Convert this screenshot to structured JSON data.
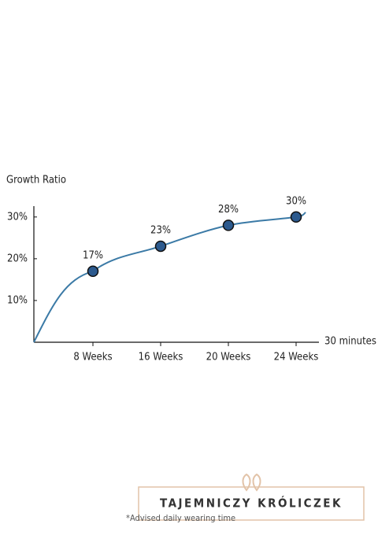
{
  "chart_data": {
    "type": "line",
    "y_label": "Growth Ratio",
    "x_label": "30 minutes",
    "categories": [
      "8 Weeks",
      "16 Weeks",
      "20 Weeks",
      "24 Weeks"
    ],
    "series": [
      {
        "name": "Growth Ratio",
        "color": "#3b7aa6",
        "values": [
          17,
          23,
          28,
          30
        ],
        "value_labels": [
          "17%",
          "23%",
          "28%",
          "30%"
        ]
      }
    ],
    "ylim": [
      0,
      32.6
    ],
    "yticks": [
      {
        "value": 10,
        "label": "10%"
      },
      {
        "value": 20,
        "label": "20%"
      },
      {
        "value": 30,
        "label": "30%"
      }
    ],
    "footnote": "*Advised daily wearing time"
  },
  "brand": "TAJEMNICZY KRÓLICZEK"
}
